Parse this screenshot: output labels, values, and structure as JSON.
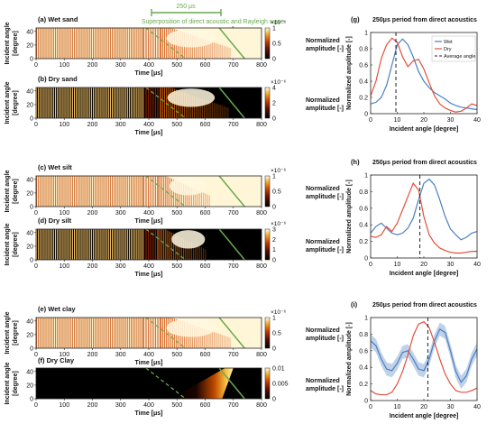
{
  "figure": {
    "annotation": {
      "span_label": "250 μs",
      "superposition_label": "Superposition of direct acoustic and Rayleigh wave"
    }
  },
  "chart_data": [
    {
      "id": "a",
      "type": "heatmap",
      "title": "(a) Wet sand",
      "ylabel": "Incident angle\n[degree]",
      "xlabel": "Time [μs]",
      "xlim": [
        0,
        800
      ],
      "ylim": [
        0,
        45
      ],
      "x_ticks": [
        0,
        100,
        200,
        300,
        400,
        500,
        600,
        700,
        800
      ],
      "y_ticks": [
        0,
        20,
        40
      ],
      "colorbar": {
        "label": "Normalized\namplitude [-]",
        "exponent": "×10⁻⁶",
        "ticks": [
          "0",
          "0.5",
          "1"
        ],
        "max": 1
      },
      "background": "striped",
      "late_background": "light",
      "event_start_us": 440,
      "event_end_us": 690
    },
    {
      "id": "b",
      "type": "heatmap",
      "title": "(b) Dry sand",
      "ylabel": "Incident angle\n[degree]",
      "xlabel": "Time [μs]",
      "xlim": [
        0,
        800
      ],
      "ylim": [
        0,
        45
      ],
      "x_ticks": [
        0,
        100,
        200,
        300,
        400,
        500,
        600,
        700,
        800
      ],
      "y_ticks": [
        0,
        20,
        40
      ],
      "colorbar": {
        "label": "Normalized\namplitude [-]",
        "exponent": "×10⁻⁶",
        "ticks": [
          "0",
          "2",
          "4"
        ],
        "max": 4
      },
      "background": "striped-dark",
      "late_background": "dark",
      "event_start_us": 440,
      "event_end_us": 680
    },
    {
      "id": "c",
      "type": "heatmap",
      "title": "(c) Wet silt",
      "ylabel": "Incident angle\n[degree]",
      "xlabel": "Time [μs]",
      "xlim": [
        0,
        800
      ],
      "ylim": [
        0,
        45
      ],
      "x_ticks": [
        0,
        100,
        200,
        300,
        400,
        500,
        600,
        700,
        800
      ],
      "y_ticks": [
        0,
        20,
        40
      ],
      "colorbar": {
        "label": "Normalized\namplitude [-]",
        "exponent": "×10⁻⁶",
        "ticks": [
          "0",
          "0.5",
          "1"
        ],
        "max": 1
      },
      "background": "striped",
      "late_background": "light",
      "event_start_us": 430,
      "event_end_us": 620
    },
    {
      "id": "d",
      "type": "heatmap",
      "title": "(d) Dry silt",
      "ylabel": "Incident angle\n[degree]",
      "xlabel": "Time [μs]",
      "xlim": [
        0,
        800
      ],
      "ylim": [
        0,
        45
      ],
      "x_ticks": [
        0,
        100,
        200,
        300,
        400,
        500,
        600,
        700,
        800
      ],
      "y_ticks": [
        0,
        20,
        40
      ],
      "colorbar": {
        "label": "Normalized\namplitude [-]",
        "exponent": "×10⁻⁶",
        "ticks": [
          "0",
          "1",
          "2",
          "3"
        ],
        "max": 3
      },
      "background": "striped-dark",
      "late_background": "dark",
      "event_start_us": 430,
      "event_end_us": 600
    },
    {
      "id": "e",
      "type": "heatmap",
      "title": "(e) Wet clay",
      "ylabel": "Incident angle\n[degree]",
      "xlabel": "Time [μs]",
      "xlim": [
        0,
        800
      ],
      "ylim": [
        0,
        45
      ],
      "x_ticks": [
        0,
        100,
        200,
        300,
        400,
        500,
        600,
        700,
        800
      ],
      "y_ticks": [
        0,
        20,
        40
      ],
      "colorbar": {
        "label": "Normalized\namplitude [-]",
        "exponent": "×10⁻⁶",
        "ticks": [
          "0",
          "0.5",
          "1"
        ],
        "max": 1
      },
      "background": "striped",
      "late_background": "light",
      "event_start_us": 440,
      "event_end_us": 690
    },
    {
      "id": "f",
      "type": "heatmap",
      "title": "(f) Dry Clay",
      "ylabel": "Incident angle\n[degree]",
      "xlabel": "Time [μs]",
      "xlim": [
        0,
        800
      ],
      "ylim": [
        0,
        45
      ],
      "x_ticks": [
        0,
        100,
        200,
        300,
        400,
        500,
        600,
        700,
        800
      ],
      "y_ticks": [
        0,
        20,
        40
      ],
      "colorbar": {
        "label": "Normalized\namplitude [-]",
        "exponent": "",
        "ticks": [
          "0",
          "0.005",
          "0.01"
        ],
        "max": 0.01
      },
      "background": "dark",
      "late_background": "dark",
      "event_start_us": 480,
      "event_end_us": 700
    },
    {
      "id": "g",
      "type": "line",
      "title": "(g)",
      "plot_title": "250μs period from direct acoustics",
      "xlabel": "Incident angle [degree]",
      "ylabel": "Normalized amplitude [-]",
      "xlim": [
        0,
        40
      ],
      "ylim": [
        0,
        1
      ],
      "x_ticks": [
        0,
        10,
        20,
        30,
        40
      ],
      "y_ticks": [
        0,
        0.2,
        0.4,
        0.6,
        0.8,
        1
      ],
      "legend": "top-right",
      "average_angle": 9.5,
      "show_legend": true,
      "series": [
        {
          "name": "Wet",
          "color": "#4a7fc0",
          "x": [
            0,
            2,
            4,
            6,
            8,
            10,
            12,
            14,
            16,
            18,
            20,
            22,
            24,
            26,
            28,
            30,
            32,
            34,
            36,
            38,
            40
          ],
          "y": [
            0.12,
            0.14,
            0.2,
            0.35,
            0.6,
            0.85,
            0.92,
            0.85,
            0.7,
            0.52,
            0.4,
            0.32,
            0.26,
            0.22,
            0.18,
            0.13,
            0.1,
            0.08,
            0.07,
            0.06,
            0.05
          ]
        },
        {
          "name": "Dry",
          "color": "#e2503c",
          "x": [
            0,
            2,
            4,
            6,
            8,
            10,
            12,
            14,
            16,
            18,
            20,
            22,
            24,
            26,
            28,
            30,
            32,
            34,
            36,
            38,
            40
          ],
          "y": [
            0.22,
            0.4,
            0.68,
            0.85,
            0.93,
            0.88,
            0.7,
            0.58,
            0.65,
            0.67,
            0.55,
            0.38,
            0.22,
            0.12,
            0.07,
            0.04,
            0.02,
            0.03,
            0.07,
            0.12,
            0.1
          ]
        }
      ],
      "average_label": "Average angle"
    },
    {
      "id": "h",
      "type": "line",
      "title": "(h)",
      "plot_title": "250μs period from direct acoustics",
      "xlabel": "Incident angle [degree]",
      "ylabel": "Normalized amplitude [-]",
      "xlim": [
        0,
        40
      ],
      "ylim": [
        0,
        1
      ],
      "x_ticks": [
        0,
        10,
        20,
        30,
        40
      ],
      "y_ticks": [
        0,
        0.2,
        0.4,
        0.6,
        0.8,
        1
      ],
      "average_angle": 18.5,
      "show_legend": false,
      "series": [
        {
          "name": "Wet",
          "color": "#4a7fc0",
          "x": [
            0,
            2,
            4,
            6,
            8,
            10,
            12,
            14,
            16,
            18,
            20,
            22,
            24,
            26,
            28,
            30,
            32,
            34,
            36,
            38,
            40
          ],
          "y": [
            0.3,
            0.38,
            0.42,
            0.36,
            0.3,
            0.28,
            0.3,
            0.36,
            0.48,
            0.7,
            0.9,
            0.95,
            0.88,
            0.7,
            0.5,
            0.35,
            0.28,
            0.22,
            0.25,
            0.3,
            0.32
          ]
        },
        {
          "name": "Dry",
          "color": "#e2503c",
          "x": [
            0,
            2,
            4,
            6,
            8,
            10,
            12,
            14,
            16,
            18,
            20,
            22,
            24,
            26,
            28,
            30,
            32,
            34,
            36,
            38,
            40
          ],
          "y": [
            0.26,
            0.25,
            0.28,
            0.38,
            0.32,
            0.42,
            0.58,
            0.74,
            0.9,
            0.82,
            0.5,
            0.28,
            0.18,
            0.12,
            0.09,
            0.07,
            0.06,
            0.06,
            0.07,
            0.08,
            0.08
          ]
        }
      ]
    },
    {
      "id": "i",
      "type": "line",
      "title": "(i)",
      "plot_title": "250μs period from direct acoustics",
      "xlabel": "Incident angle [degree]",
      "ylabel": "Normalized amplitude [-]",
      "xlim": [
        0,
        40
      ],
      "ylim": [
        0,
        1
      ],
      "x_ticks": [
        0,
        10,
        20,
        30,
        40
      ],
      "y_ticks": [
        0,
        0.2,
        0.4,
        0.6,
        0.8,
        1
      ],
      "average_angle": 21.5,
      "show_legend": false,
      "series": [
        {
          "name": "Wet",
          "color": "#4a7fc0",
          "band": 0.08,
          "x": [
            0,
            2,
            4,
            6,
            8,
            10,
            12,
            14,
            16,
            18,
            20,
            22,
            24,
            26,
            28,
            30,
            32,
            34,
            36,
            38,
            40
          ],
          "y": [
            0.72,
            0.66,
            0.5,
            0.38,
            0.36,
            0.45,
            0.58,
            0.6,
            0.5,
            0.38,
            0.36,
            0.5,
            0.72,
            0.86,
            0.82,
            0.6,
            0.35,
            0.22,
            0.3,
            0.5,
            0.62
          ]
        },
        {
          "name": "Dry",
          "color": "#e2503c",
          "x": [
            0,
            2,
            4,
            6,
            8,
            10,
            12,
            14,
            16,
            18,
            20,
            22,
            24,
            26,
            28,
            30,
            32,
            34,
            36,
            38,
            40
          ],
          "y": [
            0.12,
            0.08,
            0.07,
            0.07,
            0.1,
            0.2,
            0.35,
            0.55,
            0.78,
            0.92,
            0.95,
            0.88,
            0.7,
            0.5,
            0.32,
            0.2,
            0.12,
            0.1,
            0.1,
            0.12,
            0.15
          ]
        }
      ]
    }
  ]
}
